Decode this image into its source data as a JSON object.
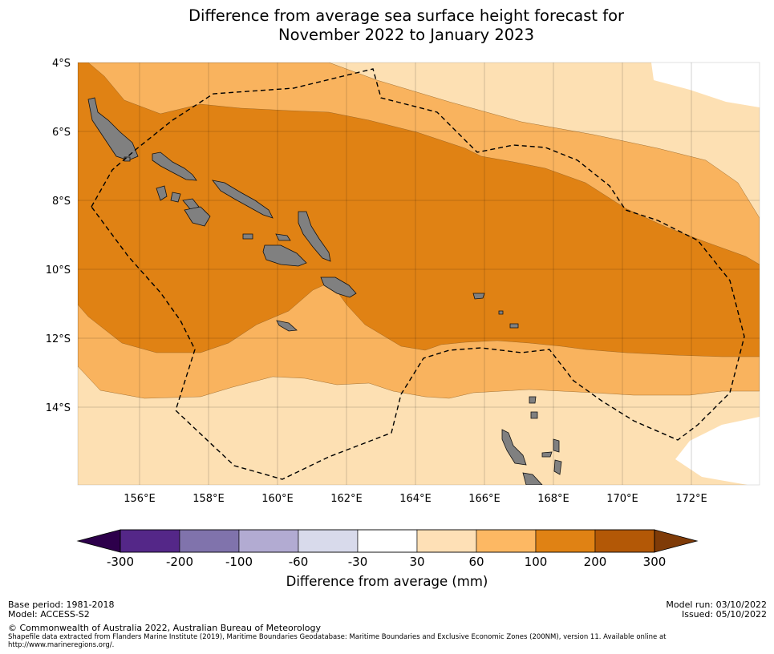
{
  "title": {
    "line1": "Difference from average sea surface height forecast for",
    "line2": "November 2022 to January 2023"
  },
  "map": {
    "lat_labels": [
      "4°S",
      "6°S",
      "8°S",
      "10°S",
      "12°S",
      "14°S"
    ],
    "lon_labels": [
      "156°E",
      "158°E",
      "160°E",
      "162°E",
      "164°E",
      "166°E",
      "168°E",
      "170°E",
      "172°E"
    ],
    "lat_range": [
      -16.4,
      -4
    ],
    "lon_range": [
      154.2,
      174
    ]
  },
  "colors": {
    "band_30_60": "#fde0b3",
    "band_60_100": "#f9b35e",
    "band_100_200": "#e08214",
    "band_200_300": "#b35806",
    "land": "#808080"
  },
  "colorbar": {
    "title": "Difference from average (mm)",
    "ticks": [
      "-300",
      "-200",
      "-100",
      "-60",
      "-30",
      "30",
      "60",
      "100",
      "200",
      "300"
    ],
    "segments": [
      "#542788",
      "#8073ac",
      "#b2abd2",
      "#d8daeb",
      "#ffffff",
      "#fee0b6",
      "#fdb863",
      "#e08214",
      "#b35806"
    ],
    "under_color": "#2d004b",
    "over_color": "#7f3b08"
  },
  "footer": {
    "base_period": "Base period: 1981-2018",
    "model": "Model: ACCESS-S2",
    "model_run": "Model run: 03/10/2022",
    "issued": "Issued: 05/10/2022",
    "copyright": "© Commonwealth of Australia 2022, Australian Bureau of Meteorology",
    "shapefile_line1": "Shapefile data extracted from Flanders Marine Institute (2019), Maritime Boundaries Geodatabase: Maritime Boundaries and Exclusive Economic Zones (200NM), version 11. Available online at",
    "shapefile_line2": "http://www.marineregions.org/."
  }
}
